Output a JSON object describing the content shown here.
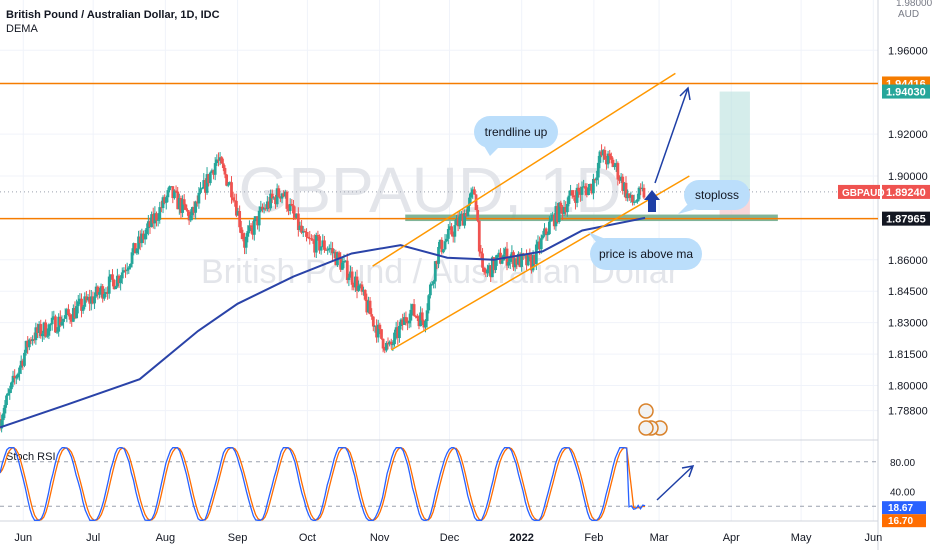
{
  "header": {
    "title": "British Pound / Australian Dollar, 1D, IDC",
    "indicator": "DEMA"
  },
  "watermark": {
    "symbol": "GBPAUD, 1D",
    "name": "British Pound / Australian Dollar"
  },
  "price_axis": {
    "currency": "AUD",
    "top_partial": "1.98000",
    "ticks": [
      "1.96000",
      "1.92000",
      "1.90000",
      "1.86000",
      "1.84500",
      "1.83000",
      "1.81500",
      "1.80000",
      "1.78800"
    ]
  },
  "price_labels": {
    "resistance": "1.94416",
    "target": "1.94030",
    "symbol_tag": "GBPAUD",
    "last_price": "1.89240",
    "support": "1.87965"
  },
  "time_axis": {
    "labels": [
      "Jun",
      "Jul",
      "Aug",
      "Sep",
      "Oct",
      "Nov",
      "Dec",
      "2022",
      "Feb",
      "Mar",
      "Apr",
      "May",
      "Jun"
    ]
  },
  "annotations": {
    "trendline": "trendline up",
    "stoploss": "stoploss",
    "price_above_ma": "price is above ma"
  },
  "rsi_panel": {
    "title": "Stoch RSI",
    "ticks": [
      "80.00",
      "40.00"
    ],
    "k_label": "18.67",
    "d_label": "16.70"
  },
  "colors": {
    "up": "#26a69a",
    "down": "#ef5350",
    "dema": "#2a43a8",
    "level": "#f57c00",
    "channel": "#ff9800",
    "arrow": "#1e3fa6",
    "support_zone": "#6aa786",
    "target_zone": "#b2dfdb",
    "stop_zone": "#f3c6cb",
    "stoch_k": "#2962ff",
    "stoch_d": "#ff6d00",
    "callout": "#bbdefb"
  },
  "chart_data": {
    "type": "candlestick",
    "timeframe": "1D",
    "ylim": [
      1.774,
      1.984
    ],
    "levels": {
      "resistance": 1.94416,
      "support": 1.87965,
      "last": 1.8924,
      "target": 1.9403
    },
    "anchors": [
      {
        "date": "2021-05-22",
        "close": 1.784
      },
      {
        "date": "2021-06-04",
        "close": 1.823
      },
      {
        "date": "2021-06-20",
        "close": 1.833
      },
      {
        "date": "2021-07-01",
        "close": 1.842
      },
      {
        "date": "2021-07-12",
        "close": 1.852
      },
      {
        "date": "2021-07-22",
        "close": 1.87
      },
      {
        "date": "2021-08-03",
        "close": 1.892
      },
      {
        "date": "2021-08-12",
        "close": 1.88
      },
      {
        "date": "2021-08-23",
        "close": 1.908
      },
      {
        "date": "2021-08-30",
        "close": 1.893
      },
      {
        "date": "2021-09-04",
        "close": 1.868
      },
      {
        "date": "2021-09-12",
        "close": 1.884
      },
      {
        "date": "2021-09-20",
        "close": 1.893
      },
      {
        "date": "2021-09-30",
        "close": 1.869
      },
      {
        "date": "2021-10-10",
        "close": 1.866
      },
      {
        "date": "2021-10-22",
        "close": 1.849
      },
      {
        "date": "2021-11-01",
        "close": 1.824
      },
      {
        "date": "2021-11-05",
        "close": 1.817
      },
      {
        "date": "2021-11-14",
        "close": 1.836
      },
      {
        "date": "2021-11-20",
        "close": 1.831
      },
      {
        "date": "2021-11-26",
        "close": 1.864
      },
      {
        "date": "2021-12-07",
        "close": 1.881
      },
      {
        "date": "2021-12-12",
        "close": 1.893
      },
      {
        "date": "2021-12-15",
        "close": 1.852
      },
      {
        "date": "2021-12-24",
        "close": 1.862
      },
      {
        "date": "2022-01-05",
        "close": 1.858
      },
      {
        "date": "2022-01-14",
        "close": 1.879
      },
      {
        "date": "2022-01-23",
        "close": 1.891
      },
      {
        "date": "2022-01-31",
        "close": 1.895
      },
      {
        "date": "2022-02-04",
        "close": 1.91
      },
      {
        "date": "2022-02-10",
        "close": 1.905
      },
      {
        "date": "2022-02-17",
        "close": 1.887
      },
      {
        "date": "2022-02-23",
        "close": 1.8924
      }
    ],
    "dema": [
      {
        "date": "2021-05-22",
        "value": 1.78
      },
      {
        "date": "2021-06-20",
        "value": 1.791
      },
      {
        "date": "2021-07-21",
        "value": 1.803
      },
      {
        "date": "2021-08-15",
        "value": 1.826
      },
      {
        "date": "2021-09-01",
        "value": 1.839
      },
      {
        "date": "2021-09-25",
        "value": 1.852
      },
      {
        "date": "2021-10-20",
        "value": 1.863
      },
      {
        "date": "2021-11-10",
        "value": 1.867
      },
      {
        "date": "2021-11-30",
        "value": 1.861
      },
      {
        "date": "2021-12-20",
        "value": 1.86
      },
      {
        "date": "2022-01-10",
        "value": 1.864
      },
      {
        "date": "2022-01-27",
        "value": 1.874
      },
      {
        "date": "2022-02-23",
        "value": 1.88
      }
    ],
    "channel_upper": [
      {
        "date": "2021-10-29",
        "value": 1.857
      },
      {
        "date": "2022-03-08",
        "value": 1.949
      }
    ],
    "channel_lower": [
      {
        "date": "2021-11-06",
        "value": 1.817
      },
      {
        "date": "2022-03-14",
        "value": 1.9
      }
    ],
    "stoch_rsi": {
      "levels": [
        80,
        20
      ],
      "k_last": 18.67,
      "d_last": 16.7
    }
  }
}
